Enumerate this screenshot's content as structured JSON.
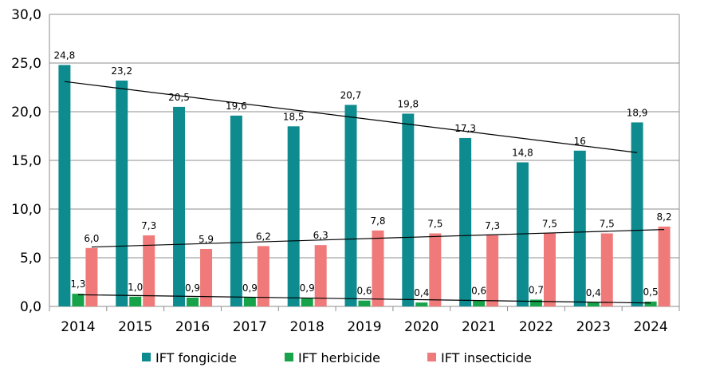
{
  "chart_data": {
    "type": "bar",
    "title": "",
    "xlabel": "",
    "ylabel": "",
    "ylim": [
      0,
      30
    ],
    "y_ticks": [
      "0,0",
      "5,0",
      "10,0",
      "15,0",
      "20,0",
      "25,0",
      "30,0"
    ],
    "grid": true,
    "legend_position": "bottom",
    "categories": [
      "2014",
      "2015",
      "2016",
      "2017",
      "2018",
      "2019",
      "2020",
      "2021",
      "2022",
      "2023",
      "2024"
    ],
    "series": [
      {
        "name": "IFT fongicide",
        "color": "#0E8B8F",
        "values": [
          24.8,
          23.2,
          20.5,
          19.6,
          18.5,
          20.7,
          19.8,
          17.3,
          14.8,
          16,
          18.9
        ],
        "labels": [
          "24,8",
          "23,2",
          "20,5",
          "19,6",
          "18,5",
          "20,7",
          "19,8",
          "17,3",
          "14,8",
          "16",
          "18,9"
        ],
        "trendline": [
          23.1,
          15.8
        ]
      },
      {
        "name": "IFT herbicide",
        "color": "#16A34A",
        "values": [
          1.3,
          1.0,
          0.9,
          0.9,
          0.9,
          0.6,
          0.4,
          0.6,
          0.7,
          0.4,
          0.5
        ],
        "labels": [
          "1,3",
          "1,0",
          "0,9",
          "0,9",
          "0,9",
          "0,6",
          "0,4",
          "0,6",
          "0,7",
          "0,4",
          "0,5"
        ],
        "trendline": [
          1.2,
          0.35
        ]
      },
      {
        "name": "IFT insecticide",
        "color": "#F07A7A",
        "values": [
          6.0,
          7.3,
          5.9,
          6.2,
          6.3,
          7.8,
          7.5,
          7.3,
          7.5,
          7.5,
          8.2
        ],
        "labels": [
          "6,0",
          "7,3",
          "5,9",
          "6,2",
          "6,3",
          "7,8",
          "7,5",
          "7,3",
          "7,5",
          "7,5",
          "8,2"
        ],
        "trendline": [
          6.1,
          7.9
        ]
      }
    ]
  }
}
